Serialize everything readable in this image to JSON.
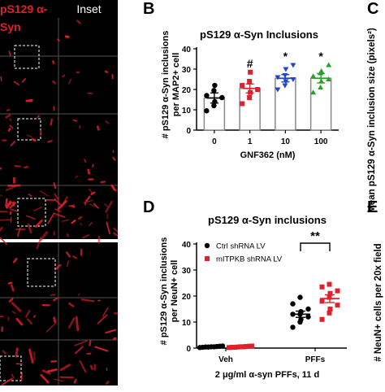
{
  "micrograph": {
    "left_header": "pS129 α-Syn",
    "left_header_color": "#e0202a",
    "right_header": "Inset",
    "right_header_color": "#ffffff",
    "background": "#000000",
    "stain_color": "#e0202a"
  },
  "panel_letters": {
    "b": "B",
    "c": "C",
    "d": "D",
    "e": "E"
  },
  "side_labels": {
    "c_ylabel": "Mean pS129 α-Syn inclusion size (pixels²)",
    "e_ylabel": "# NeuN+ cells per 20x field"
  },
  "chart_data": [
    {
      "id": "B",
      "type": "bar",
      "title": "pS129 α-Syn Inclusions",
      "ylabel": "# pS129 α-Syn inclusions per MAP2+ cell",
      "xlabel": "GNF362 (nM)",
      "categories": [
        "0",
        "1",
        "10",
        "100"
      ],
      "ylim": [
        0,
        40
      ],
      "yticks": [
        0,
        10,
        20,
        30,
        40
      ],
      "grid": false,
      "values": [
        15.8,
        20.5,
        25.5,
        25.5
      ],
      "errors": [
        2.5,
        2.2,
        1.8,
        2.3
      ],
      "point_colors": [
        "#000000",
        "#e0202a",
        "#2346c8",
        "#2aa02a"
      ],
      "significance": [
        "",
        "#",
        "*",
        "*"
      ],
      "points": [
        [
          9.5,
          12,
          14,
          16,
          17,
          19.5,
          22
        ],
        [
          13,
          16,
          18.5,
          20,
          22,
          24,
          28.5
        ],
        [
          20,
          22,
          24,
          25,
          26,
          27,
          30,
          32
        ],
        [
          18.5,
          21,
          24,
          25,
          26.5,
          28,
          29,
          32
        ]
      ]
    },
    {
      "id": "D",
      "type": "scatter",
      "title": "pS129 α-Syn inclusions",
      "ylabel": "# pS129 α-Syn inclusions per NeuN+ cell",
      "xlabel": "2 μg/ml α-syn PFFs, 11 d",
      "categories": [
        "Veh",
        "PFFs"
      ],
      "ylim": [
        0,
        40
      ],
      "yticks": [
        0,
        10,
        20,
        30,
        40
      ],
      "grid": false,
      "legend_position": "top-left",
      "series": [
        {
          "name": "Ctrl shRNA LV",
          "color": "#000000",
          "marker": "circle",
          "veh": [
            0.2,
            0.3,
            0.4,
            0.4,
            0.5,
            0.5,
            0.6,
            0.7,
            0.8
          ],
          "veh_mean": 0.5,
          "pffs": [
            8,
            10,
            11,
            12,
            13,
            13,
            14,
            15,
            17,
            19.5
          ],
          "pffs_mean": 13,
          "pffs_sem": 1.2
        },
        {
          "name": "mITPKB shRNA LV",
          "color": "#e0202a",
          "marker": "square",
          "veh": [
            0.2,
            0.3,
            0.3,
            0.4,
            0.5,
            0.5,
            0.6,
            0.7,
            0.8
          ],
          "veh_mean": 0.5,
          "pffs": [
            11,
            13.5,
            15,
            16.5,
            18,
            19.5,
            21,
            22,
            23.5,
            24.5
          ],
          "pffs_mean": 19,
          "pffs_sem": 1.5
        }
      ],
      "significance": "**"
    }
  ]
}
